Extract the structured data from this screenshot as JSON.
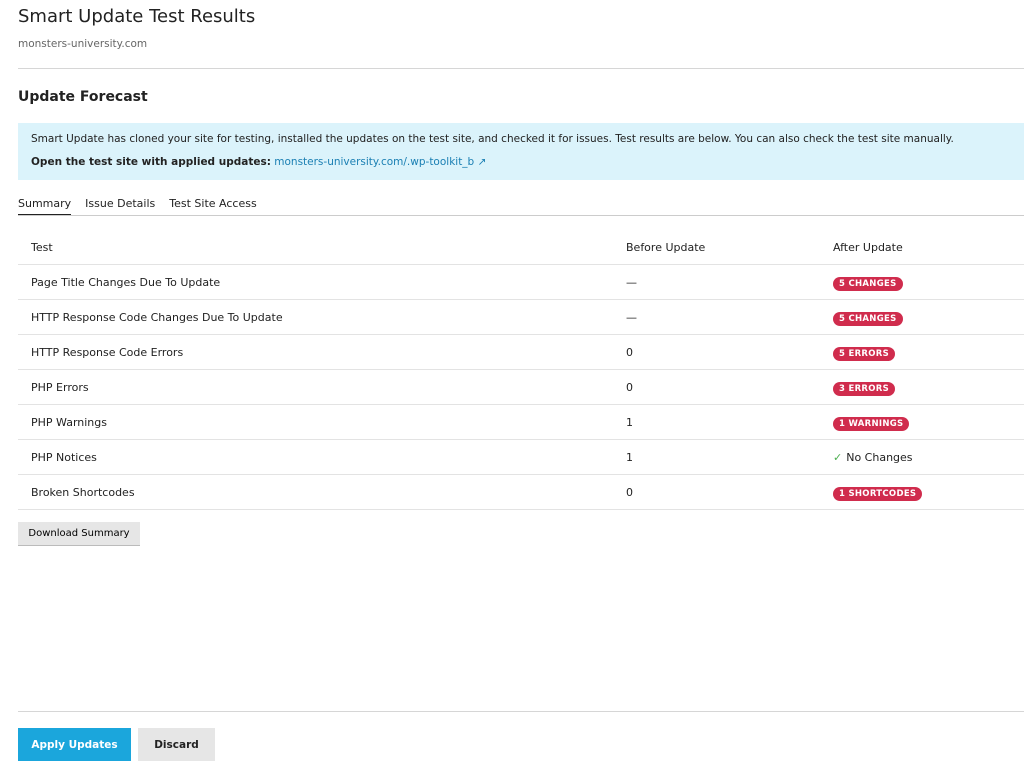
{
  "header": {
    "title": "Smart Update Test Results",
    "subtitle": "monsters-university.com"
  },
  "section_title": "Update Forecast",
  "notice": {
    "text": "Smart Update has cloned your site for testing, installed the updates on the test site, and checked it for issues. Test results are below. You can also check the test site manually.",
    "link_label": "Open the test site with applied updates:",
    "link_text": "monsters-university.com/.wp-toolkit_b"
  },
  "tabs": [
    "Summary",
    "Issue Details",
    "Test Site Access"
  ],
  "table": {
    "columns": [
      "Test",
      "Before Update",
      "After Update"
    ],
    "rows": [
      [
        "Page Title Changes Due To Update",
        "—",
        "5 CHANGES"
      ],
      [
        "HTTP Response Code Changes Due To Update",
        "—",
        "5 CHANGES"
      ],
      [
        "HTTP Response Code Errors",
        0,
        "5 ERRORS"
      ],
      [
        "PHP Errors",
        0,
        "3 ERRORS"
      ],
      [
        "PHP Warnings",
        1,
        "1 WARNINGS"
      ],
      [
        "PHP Notices",
        1,
        "No Changes"
      ],
      [
        "Broken Shortcodes",
        0,
        "1 SHORTCODES"
      ]
    ]
  },
  "buttons": {
    "download": "Download Summary",
    "apply": "Apply Updates",
    "discard": "Discard"
  }
}
